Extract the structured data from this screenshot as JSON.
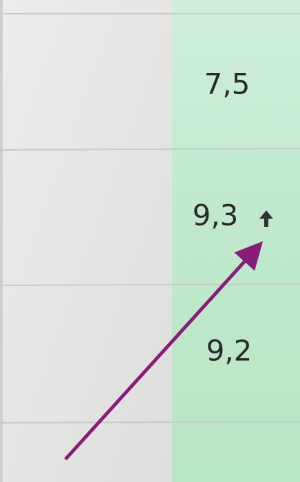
{
  "table": {
    "rows": [
      [
        "7,5"
      ],
      [
        "9,3"
      ],
      [
        "9,2"
      ]
    ]
  }
}
